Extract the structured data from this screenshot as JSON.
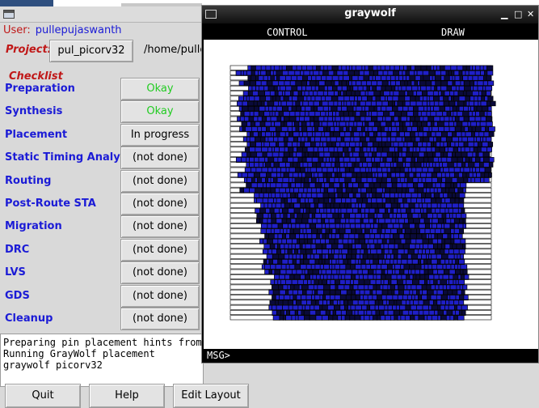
{
  "qflow": {
    "user_label": "User:",
    "user_value": "pullepujaswanth",
    "project_label": "Project:",
    "project_button": "pul_picorv32",
    "project_path": "/home/pullep",
    "checklist_label": "Checklist",
    "steps": [
      {
        "name": "Preparation",
        "status": "Okay"
      },
      {
        "name": "Synthesis",
        "status": "Okay"
      },
      {
        "name": "Placement",
        "status": "In progress"
      },
      {
        "name": "Static Timing Analysis",
        "status": "(not done)"
      },
      {
        "name": "Routing",
        "status": "(not done)"
      },
      {
        "name": "Post-Route STA",
        "status": "(not done)"
      },
      {
        "name": "Migration",
        "status": "(not done)"
      },
      {
        "name": "DRC",
        "status": "(not done)"
      },
      {
        "name": "LVS",
        "status": "(not done)"
      },
      {
        "name": "GDS",
        "status": "(not done)"
      },
      {
        "name": "Cleanup",
        "status": "(not done)"
      }
    ],
    "log_lines": [
      "Preparing pin placement hints from pi",
      "Running GrayWolf placement",
      "graywolf  picorv32"
    ],
    "buttons": {
      "quit": "Quit",
      "help": "Help",
      "edit_layout": "Edit Layout"
    }
  },
  "graywolf": {
    "title": "graywolf",
    "menu_control": "CONTROL",
    "menu_draw": "DRAW",
    "msg_prompt": "MSG>",
    "window_controls": {
      "minimize": "▁",
      "maximize": "□",
      "close": "✕"
    }
  },
  "colors": {
    "label_red": "#c01818",
    "step_blue": "#1b1bd6",
    "ok_green": "#22cc22",
    "cell_blue": "#1f1fc8",
    "cell_dark": "#0a0a3a"
  }
}
